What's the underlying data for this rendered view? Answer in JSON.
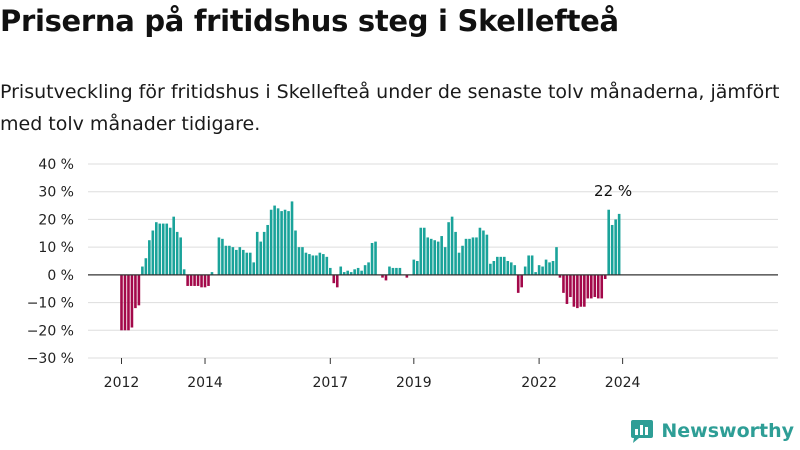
{
  "title": "Priserna på fritidshus steg i Skellefteå",
  "subtitle": "Prisutveckling för fritidshus i Skellefteå under de senaste tolv månaderna, jämfört med tolv månader tidigare.",
  "brand": "Newsworthy",
  "colors": {
    "positive": "#1aa39a",
    "negative": "#a3094a",
    "grid": "#dddddd",
    "zero": "#333333"
  },
  "chart_data": {
    "type": "bar",
    "title": "Priserna på fritidshus steg i Skellefteå",
    "ylim": [
      -30,
      40
    ],
    "yticks": [
      40,
      30,
      20,
      10,
      0,
      -10,
      -20,
      -30
    ],
    "ytick_labels": [
      "40 %",
      "30 %",
      "20 %",
      "10 %",
      "0 %",
      "−10 %",
      "−20 %",
      "−30 %"
    ],
    "xticks": [
      2012,
      2014,
      2017,
      2019,
      2022,
      2024
    ],
    "xtick_labels": [
      "2012",
      "2014",
      "2017",
      "2019",
      "2022",
      "2024"
    ],
    "start": "2012-01",
    "grid": true,
    "annotation": "22 %",
    "values": [
      -20,
      -20,
      -20,
      -19,
      -12,
      -11,
      3,
      6,
      12.5,
      16,
      19,
      18.5,
      18.5,
      18.5,
      17,
      21,
      15.5,
      13.5,
      2,
      -4,
      -4,
      -4,
      -4,
      -4.5,
      -4.5,
      -4,
      1,
      0,
      13.5,
      13,
      10.5,
      10.5,
      10,
      9,
      10,
      9,
      8,
      8,
      4.5,
      15.5,
      12,
      15.5,
      18,
      23.5,
      25,
      24,
      23,
      23.5,
      23,
      26.5,
      16,
      10,
      10,
      8,
      7.5,
      7,
      7,
      8,
      7.5,
      6.5,
      2.5,
      -3,
      -4.5,
      3,
      1,
      1.5,
      1,
      2,
      2.5,
      1.5,
      3.5,
      4.5,
      11.5,
      12,
      0,
      -1,
      -2,
      3,
      2.5,
      2.5,
      2.5,
      0,
      -1,
      0,
      5.5,
      5,
      17,
      17,
      13.5,
      13,
      12.5,
      12,
      14,
      10,
      19,
      21,
      15.5,
      8,
      10.5,
      13,
      13,
      13.5,
      13.5,
      17,
      16,
      14.5,
      4,
      5,
      6.5,
      6.5,
      6.5,
      5,
      4.5,
      3.5,
      -6.5,
      -4.5,
      3,
      7,
      7,
      1,
      3.5,
      3,
      5.5,
      4.5,
      5,
      10,
      -1,
      -6.5,
      -10.5,
      -8,
      -11.5,
      -12,
      -11.5,
      -11.5,
      -8.5,
      -8.5,
      -8,
      -8.5,
      -8.5,
      -1.5,
      23.5,
      18,
      20,
      22
    ]
  }
}
